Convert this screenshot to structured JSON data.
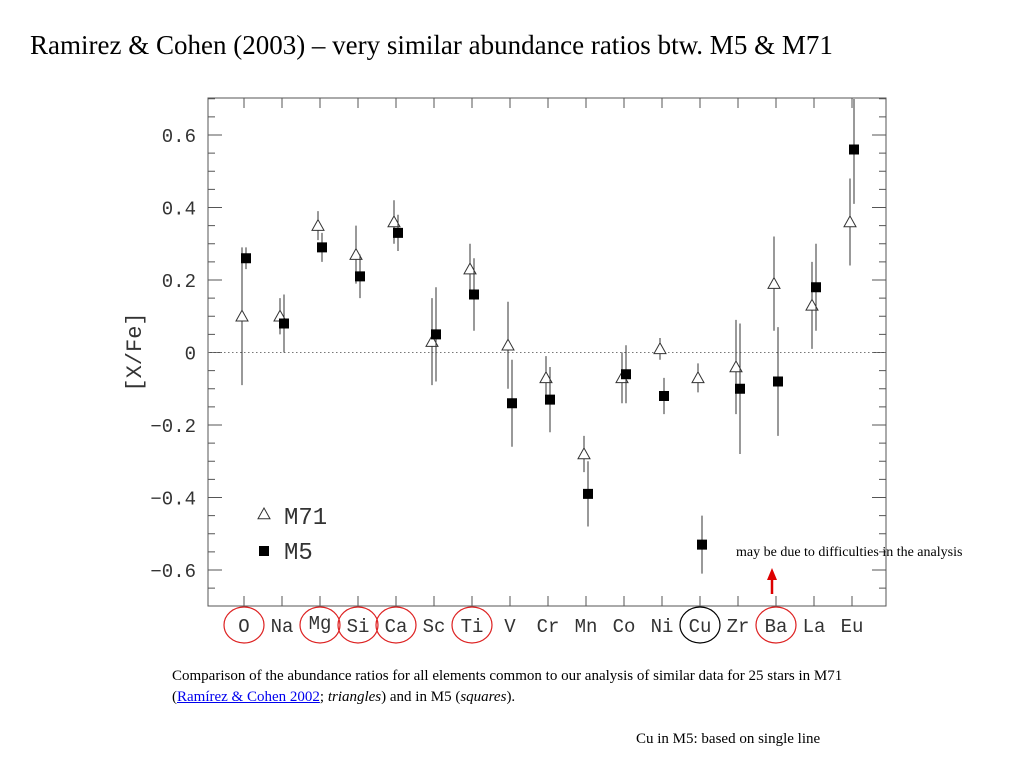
{
  "slide": {
    "title": "Ramirez & Cohen (2003) – very similar abundance ratios btw. M5 & M71",
    "annotation": "may be due to difficulties in the analysis",
    "caption_pre": "Comparison of the abundance ratios for all elements common to our analysis of similar data for 25 stars in M71 (",
    "caption_link": "Ramírez & Cohen 2002",
    "caption_mid1": "; ",
    "caption_em1": "triangles",
    "caption_mid2": ") and in M5 (",
    "caption_em2": "squares",
    "caption_end": ").",
    "footnote": "Cu in M5: based on single line"
  },
  "chart_data": {
    "type": "scatter",
    "ylabel": "[X/Fe]",
    "ylim": [
      -0.7,
      0.7
    ],
    "yticks": [
      -0.6,
      -0.4,
      -0.2,
      0,
      0.2,
      0.4,
      0.6
    ],
    "ytick_labels": [
      "−0.6",
      "−0.4",
      "−0.2",
      "0",
      "0.2",
      "0.4",
      "0.6"
    ],
    "reference_line": 0,
    "categories": [
      "O",
      "Na",
      "Mg",
      "Si",
      "Ca",
      "Sc",
      "Ti",
      "V",
      "Cr",
      "Mn",
      "Co",
      "Ni",
      "Cu",
      "Zr",
      "Ba",
      "La",
      "Eu"
    ],
    "circled_red": [
      "O",
      "Mg",
      "Si",
      "Ca",
      "Ti",
      "Ba"
    ],
    "circled_black": [
      "Cu"
    ],
    "arrow_at": "Ba",
    "arrow_color": "#dd0000",
    "legend_position": "lower-left",
    "series": [
      {
        "name": "M71",
        "marker": "open-triangle",
        "values": [
          0.1,
          0.1,
          0.35,
          0.27,
          0.36,
          0.03,
          0.23,
          0.02,
          -0.07,
          -0.28,
          -0.07,
          0.01,
          -0.07,
          -0.04,
          0.19,
          0.13,
          0.36
        ],
        "err": [
          0.19,
          0.05,
          0.04,
          0.08,
          0.06,
          0.12,
          0.07,
          0.12,
          0.06,
          0.05,
          0.07,
          0.03,
          0.04,
          0.13,
          0.13,
          0.12,
          0.12
        ]
      },
      {
        "name": "M5",
        "marker": "filled-square",
        "values": [
          0.26,
          0.08,
          0.29,
          0.21,
          0.33,
          0.05,
          0.16,
          -0.14,
          -0.13,
          -0.39,
          -0.06,
          -0.12,
          -0.53,
          -0.1,
          -0.08,
          0.18,
          0.56
        ],
        "err": [
          0.03,
          0.08,
          0.04,
          0.06,
          0.05,
          0.13,
          0.1,
          0.12,
          0.09,
          0.09,
          0.08,
          0.05,
          0.08,
          0.18,
          0.15,
          0.12,
          0.15
        ]
      }
    ]
  }
}
